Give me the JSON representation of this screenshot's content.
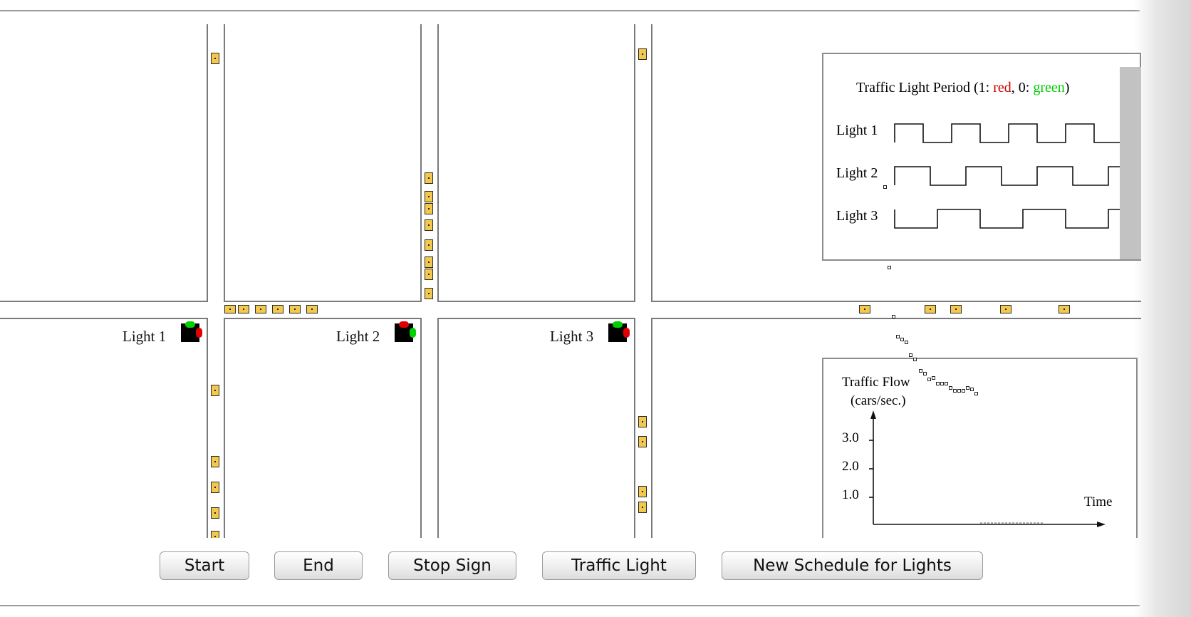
{
  "intersections": [
    {
      "label": "Light 1",
      "state": "green-horizontal"
    },
    {
      "label": "Light 2",
      "state": "green-vertical"
    },
    {
      "label": "Light 3",
      "state": "green-horizontal"
    }
  ],
  "light_panel": {
    "title_prefix": "Traffic Light Period (1: ",
    "red_word": "red",
    "mid": ", 0: ",
    "green_word": "green",
    "suffix": ")",
    "rows": [
      {
        "label": "Light 1"
      },
      {
        "label": "Light 2"
      },
      {
        "label": "Light 3"
      }
    ]
  },
  "flow_panel": {
    "title_line1": "Traffic Flow",
    "title_line2": "(cars/sec.)",
    "ticks": [
      "3.0",
      "2.0",
      "1.0"
    ],
    "x_label": "Time"
  },
  "buttons": {
    "start": "Start",
    "end": "End",
    "stop_sign": "Stop Sign",
    "traffic_light": "Traffic Light",
    "new_schedule": "New Schedule for Lights"
  },
  "colors": {
    "car": "#f2c94c",
    "red": "#cc0000",
    "green": "#00d000",
    "road": "#7a7a7a"
  }
}
